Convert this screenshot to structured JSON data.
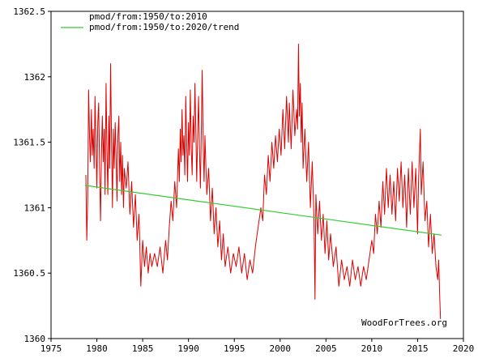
{
  "chart_data": {
    "type": "line",
    "title": "",
    "xlabel": "",
    "ylabel": "",
    "xlim": [
      1975,
      2020
    ],
    "ylim": [
      1360,
      1362.5
    ],
    "x_ticks": [
      1975,
      1980,
      1985,
      1990,
      1995,
      2000,
      2005,
      2010,
      2015,
      2020
    ],
    "y_ticks": [
      1360,
      1360.5,
      1361,
      1361.5,
      1362,
      1362.5
    ],
    "y_tick_labels": [
      "1360",
      "1360.5",
      "1361",
      "1361.5",
      "1362",
      "1362.5"
    ],
    "grid": false,
    "legend_placement": "top-left",
    "series": [
      {
        "name": "pmod/from:1950/to:2010",
        "color": "#dd0000",
        "style": "line",
        "points": [
          [
            1978.8,
            1361.25
          ],
          [
            1978.9,
            1360.75
          ],
          [
            1979.0,
            1361.05
          ],
          [
            1979.1,
            1361.9
          ],
          [
            1979.2,
            1361.55
          ],
          [
            1979.3,
            1361.35
          ],
          [
            1979.4,
            1361.75
          ],
          [
            1979.5,
            1361.4
          ],
          [
            1979.6,
            1361.6
          ],
          [
            1979.7,
            1361.3
          ],
          [
            1979.8,
            1361.85
          ],
          [
            1979.9,
            1361.5
          ],
          [
            1980.0,
            1361.15
          ],
          [
            1980.1,
            1361.65
          ],
          [
            1980.2,
            1361.8
          ],
          [
            1980.3,
            1361.3
          ],
          [
            1980.4,
            1360.9
          ],
          [
            1980.5,
            1361.4
          ],
          [
            1980.6,
            1361.7
          ],
          [
            1980.7,
            1361.35
          ],
          [
            1980.8,
            1361.6
          ],
          [
            1980.9,
            1361.1
          ],
          [
            1981.0,
            1361.95
          ],
          [
            1981.1,
            1361.45
          ],
          [
            1981.2,
            1361.1
          ],
          [
            1981.3,
            1361.7
          ],
          [
            1981.4,
            1361.3
          ],
          [
            1981.5,
            1362.1
          ],
          [
            1981.6,
            1361.5
          ],
          [
            1981.7,
            1361.0
          ],
          [
            1981.8,
            1361.6
          ],
          [
            1981.9,
            1361.3
          ],
          [
            1982.0,
            1361.65
          ],
          [
            1982.1,
            1361.4
          ],
          [
            1982.2,
            1361.05
          ],
          [
            1982.3,
            1361.55
          ],
          [
            1982.4,
            1361.7
          ],
          [
            1982.5,
            1361.2
          ],
          [
            1982.6,
            1361.5
          ],
          [
            1982.7,
            1361.1
          ],
          [
            1982.8,
            1361.4
          ],
          [
            1982.9,
            1361.0
          ],
          [
            1983.0,
            1361.3
          ],
          [
            1983.2,
            1361.15
          ],
          [
            1983.4,
            1361.35
          ],
          [
            1983.6,
            1360.95
          ],
          [
            1983.8,
            1361.2
          ],
          [
            1984.0,
            1360.85
          ],
          [
            1984.2,
            1361.1
          ],
          [
            1984.4,
            1360.75
          ],
          [
            1984.6,
            1360.95
          ],
          [
            1984.8,
            1360.4
          ],
          [
            1985.0,
            1360.75
          ],
          [
            1985.2,
            1360.55
          ],
          [
            1985.4,
            1360.7
          ],
          [
            1985.6,
            1360.5
          ],
          [
            1985.8,
            1360.65
          ],
          [
            1986.0,
            1360.55
          ],
          [
            1986.3,
            1360.65
          ],
          [
            1986.6,
            1360.55
          ],
          [
            1986.9,
            1360.7
          ],
          [
            1987.2,
            1360.5
          ],
          [
            1987.5,
            1360.75
          ],
          [
            1987.7,
            1360.6
          ],
          [
            1987.9,
            1360.85
          ],
          [
            1988.1,
            1361.05
          ],
          [
            1988.3,
            1360.9
          ],
          [
            1988.5,
            1361.2
          ],
          [
            1988.7,
            1361.0
          ],
          [
            1988.9,
            1361.45
          ],
          [
            1989.0,
            1361.2
          ],
          [
            1989.1,
            1361.6
          ],
          [
            1989.2,
            1361.35
          ],
          [
            1989.3,
            1361.75
          ],
          [
            1989.4,
            1361.4
          ],
          [
            1989.5,
            1361.55
          ],
          [
            1989.6,
            1361.25
          ],
          [
            1989.7,
            1361.85
          ],
          [
            1989.8,
            1361.5
          ],
          [
            1989.9,
            1361.2
          ],
          [
            1990.0,
            1361.65
          ],
          [
            1990.1,
            1361.4
          ],
          [
            1990.2,
            1361.9
          ],
          [
            1990.3,
            1361.45
          ],
          [
            1990.4,
            1361.25
          ],
          [
            1990.5,
            1361.7
          ],
          [
            1990.6,
            1361.5
          ],
          [
            1990.7,
            1361.95
          ],
          [
            1990.8,
            1361.6
          ],
          [
            1990.9,
            1361.2
          ],
          [
            1991.0,
            1361.55
          ],
          [
            1991.1,
            1361.85
          ],
          [
            1991.2,
            1361.45
          ],
          [
            1991.3,
            1361.15
          ],
          [
            1991.4,
            1361.6
          ],
          [
            1991.5,
            1362.05
          ],
          [
            1991.6,
            1361.5
          ],
          [
            1991.7,
            1361.2
          ],
          [
            1991.8,
            1361.55
          ],
          [
            1991.9,
            1361.3
          ],
          [
            1992.0,
            1361.1
          ],
          [
            1992.2,
            1361.3
          ],
          [
            1992.4,
            1360.9
          ],
          [
            1992.6,
            1361.15
          ],
          [
            1992.8,
            1360.8
          ],
          [
            1993.0,
            1361.0
          ],
          [
            1993.2,
            1360.7
          ],
          [
            1993.4,
            1360.9
          ],
          [
            1993.6,
            1360.6
          ],
          [
            1993.8,
            1360.8
          ],
          [
            1994.0,
            1360.55
          ],
          [
            1994.3,
            1360.7
          ],
          [
            1994.6,
            1360.5
          ],
          [
            1994.9,
            1360.65
          ],
          [
            1995.2,
            1360.55
          ],
          [
            1995.5,
            1360.7
          ],
          [
            1995.8,
            1360.5
          ],
          [
            1996.1,
            1360.65
          ],
          [
            1996.4,
            1360.45
          ],
          [
            1996.7,
            1360.6
          ],
          [
            1997.0,
            1360.5
          ],
          [
            1997.3,
            1360.7
          ],
          [
            1997.6,
            1360.85
          ],
          [
            1997.9,
            1361.0
          ],
          [
            1998.1,
            1360.9
          ],
          [
            1998.3,
            1361.25
          ],
          [
            1998.5,
            1361.1
          ],
          [
            1998.7,
            1361.4
          ],
          [
            1998.9,
            1361.2
          ],
          [
            1999.1,
            1361.5
          ],
          [
            1999.3,
            1361.3
          ],
          [
            1999.5,
            1361.55
          ],
          [
            1999.7,
            1361.35
          ],
          [
            1999.9,
            1361.6
          ],
          [
            2000.1,
            1361.4
          ],
          [
            2000.3,
            1361.75
          ],
          [
            2000.5,
            1361.45
          ],
          [
            2000.7,
            1361.85
          ],
          [
            2000.9,
            1361.5
          ],
          [
            2001.0,
            1361.8
          ],
          [
            2001.2,
            1361.45
          ],
          [
            2001.4,
            1361.9
          ],
          [
            2001.6,
            1361.55
          ],
          [
            2001.8,
            1361.75
          ],
          [
            2001.9,
            1361.6
          ],
          [
            2002.0,
            1362.25
          ],
          [
            2002.1,
            1361.7
          ],
          [
            2002.2,
            1361.95
          ],
          [
            2002.3,
            1361.5
          ],
          [
            2002.4,
            1361.8
          ],
          [
            2002.5,
            1361.3
          ],
          [
            2002.7,
            1361.6
          ],
          [
            2002.9,
            1361.2
          ],
          [
            2003.1,
            1361.5
          ],
          [
            2003.3,
            1361.0
          ],
          [
            2003.5,
            1361.35
          ],
          [
            2003.7,
            1360.9
          ],
          [
            2003.8,
            1360.3
          ],
          [
            2003.9,
            1361.1
          ],
          [
            2004.1,
            1360.8
          ],
          [
            2004.3,
            1361.05
          ],
          [
            2004.5,
            1360.75
          ],
          [
            2004.7,
            1360.95
          ],
          [
            2004.9,
            1360.65
          ],
          [
            2005.1,
            1360.9
          ],
          [
            2005.3,
            1360.6
          ],
          [
            2005.5,
            1360.8
          ],
          [
            2005.8,
            1360.55
          ],
          [
            2006.1,
            1360.7
          ],
          [
            2006.4,
            1360.4
          ],
          [
            2006.7,
            1360.6
          ],
          [
            2007.0,
            1360.45
          ],
          [
            2007.3,
            1360.55
          ],
          [
            2007.6,
            1360.4
          ],
          [
            2007.9,
            1360.6
          ],
          [
            2008.2,
            1360.45
          ],
          [
            2008.5,
            1360.55
          ],
          [
            2008.8,
            1360.4
          ],
          [
            2009.1,
            1360.55
          ],
          [
            2009.4,
            1360.45
          ],
          [
            2009.7,
            1360.6
          ],
          [
            2010.0,
            1360.75
          ],
          [
            2010.2,
            1360.65
          ],
          [
            2010.4,
            1360.95
          ],
          [
            2010.6,
            1360.8
          ],
          [
            2010.8,
            1361.05
          ],
          [
            2011.0,
            1360.85
          ],
          [
            2011.2,
            1361.2
          ],
          [
            2011.4,
            1360.95
          ],
          [
            2011.6,
            1361.3
          ],
          [
            2011.8,
            1361.0
          ],
          [
            2012.0,
            1361.25
          ],
          [
            2012.2,
            1360.95
          ],
          [
            2012.4,
            1361.2
          ],
          [
            2012.6,
            1360.9
          ],
          [
            2012.8,
            1361.3
          ],
          [
            2013.0,
            1361.05
          ],
          [
            2013.2,
            1361.35
          ],
          [
            2013.4,
            1361.0
          ],
          [
            2013.6,
            1361.25
          ],
          [
            2013.8,
            1360.85
          ],
          [
            2014.0,
            1361.3
          ],
          [
            2014.2,
            1360.95
          ],
          [
            2014.4,
            1361.35
          ],
          [
            2014.6,
            1361.0
          ],
          [
            2014.8,
            1361.3
          ],
          [
            2015.0,
            1360.8
          ],
          [
            2015.1,
            1361.2
          ],
          [
            2015.3,
            1361.6
          ],
          [
            2015.4,
            1361.1
          ],
          [
            2015.6,
            1361.35
          ],
          [
            2015.8,
            1360.9
          ],
          [
            2016.0,
            1361.05
          ],
          [
            2016.2,
            1360.7
          ],
          [
            2016.4,
            1360.95
          ],
          [
            2016.6,
            1360.65
          ],
          [
            2016.8,
            1360.8
          ],
          [
            2017.0,
            1360.55
          ],
          [
            2017.2,
            1360.45
          ],
          [
            2017.3,
            1360.6
          ],
          [
            2017.4,
            1360.35
          ],
          [
            2017.5,
            1360.15
          ]
        ]
      },
      {
        "name": "pmod/from:1950/to:2020/trend",
        "color": "#33cc33",
        "style": "line",
        "points": [
          [
            1978.7,
            1361.17
          ],
          [
            2017.6,
            1360.79
          ]
        ]
      }
    ]
  },
  "watermark": "WoodForTrees.org",
  "colors": {
    "background": "#ffffff",
    "axis": "#000000"
  }
}
